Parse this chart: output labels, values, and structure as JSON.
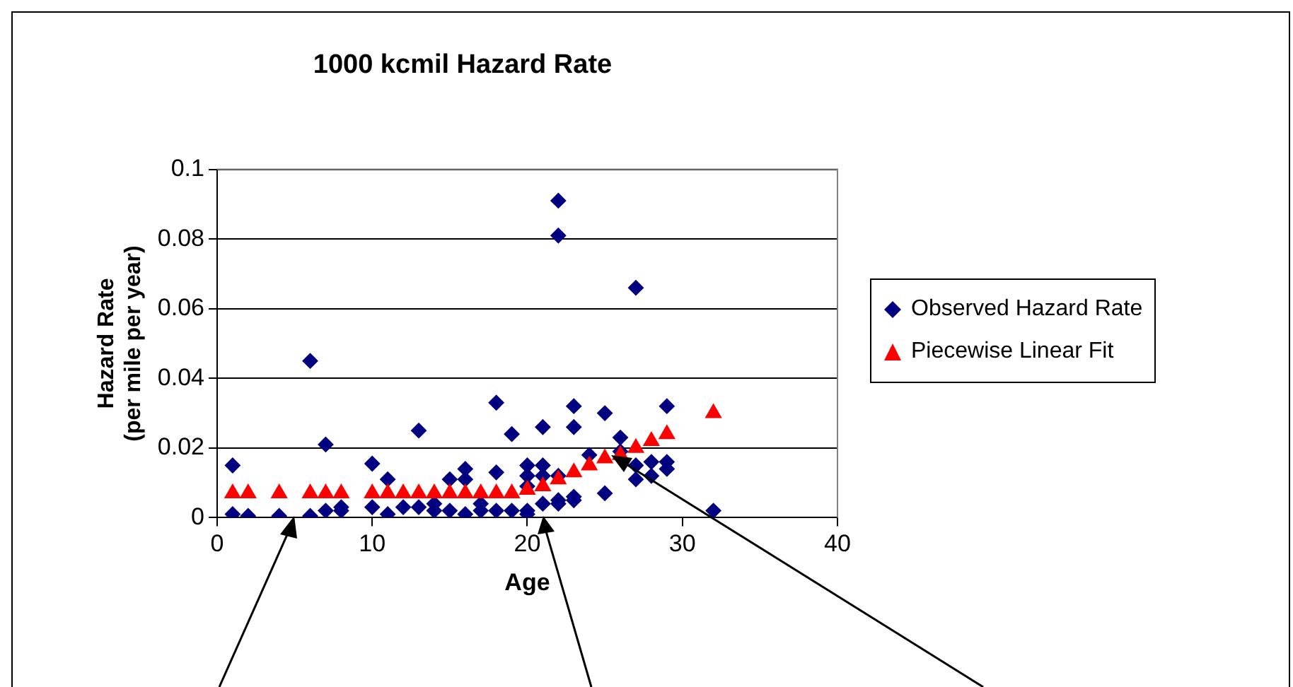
{
  "chart_data": {
    "type": "scatter",
    "title": "1000 kcmil Hazard Rate",
    "xlabel": "Age",
    "ylabel": "Hazard Rate\n(per mile per year)",
    "xlim": [
      0,
      40
    ],
    "xticks": [
      0,
      10,
      20,
      30,
      40
    ],
    "ylim": [
      0,
      0.1
    ],
    "yticks": [
      0,
      0.02,
      0.04,
      0.06,
      0.08,
      0.1
    ],
    "grid": "y",
    "legend": "right",
    "series": [
      {
        "name": "Observed Hazard Rate",
        "color": "#000080",
        "marker": "diamond",
        "x": [
          1,
          1,
          2,
          4,
          6,
          6,
          7,
          7,
          8,
          8,
          10,
          10,
          11,
          11,
          12,
          13,
          13,
          14,
          14,
          15,
          15,
          16,
          16,
          16,
          17,
          17,
          18,
          18,
          18,
          19,
          19,
          20,
          20,
          20,
          20,
          20,
          21,
          21,
          21,
          21,
          22,
          22,
          22,
          22,
          22,
          23,
          23,
          23,
          23,
          24,
          25,
          25,
          26,
          26,
          27,
          27,
          27,
          28,
          28,
          29,
          29,
          29,
          32
        ],
        "values": [
          0.015,
          0.001,
          0.0005,
          0.0005,
          0.045,
          0.0005,
          0.021,
          0.002,
          0.002,
          0.003,
          0.0155,
          0.003,
          0.011,
          0.001,
          0.003,
          0.025,
          0.003,
          0.004,
          0.002,
          0.011,
          0.002,
          0.014,
          0.011,
          0.001,
          0.004,
          0.002,
          0.033,
          0.013,
          0.002,
          0.024,
          0.002,
          0.015,
          0.012,
          0.009,
          0.002,
          0.001,
          0.026,
          0.015,
          0.012,
          0.004,
          0.091,
          0.081,
          0.012,
          0.004,
          0.005,
          0.032,
          0.026,
          0.006,
          0.005,
          0.018,
          0.03,
          0.007,
          0.023,
          0.019,
          0.066,
          0.015,
          0.011,
          0.016,
          0.012,
          0.032,
          0.016,
          0.014,
          0.002
        ]
      },
      {
        "name": "Piecewise Linear Fit",
        "color": "#ff0000",
        "marker": "triangle",
        "x": [
          1,
          2,
          4,
          6,
          7,
          8,
          10,
          11,
          12,
          13,
          14,
          15,
          16,
          17,
          18,
          19,
          20,
          21,
          22,
          23,
          24,
          25,
          26,
          27,
          28,
          29,
          32
        ],
        "values": [
          0.007,
          0.007,
          0.007,
          0.007,
          0.007,
          0.007,
          0.007,
          0.007,
          0.007,
          0.007,
          0.007,
          0.007,
          0.007,
          0.007,
          0.007,
          0.007,
          0.008,
          0.009,
          0.011,
          0.013,
          0.015,
          0.017,
          0.018,
          0.02,
          0.022,
          0.024,
          0.03
        ]
      }
    ]
  }
}
